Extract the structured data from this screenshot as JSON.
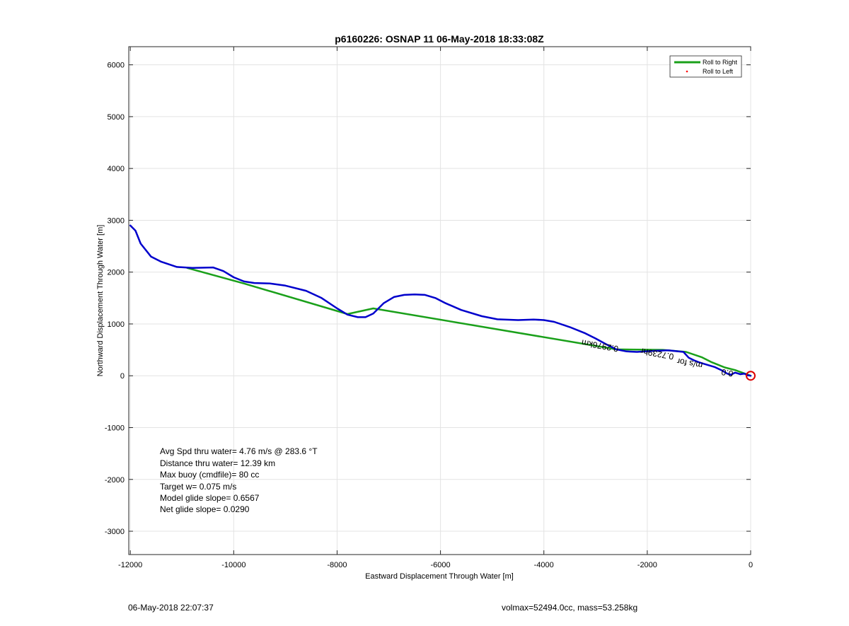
{
  "chart_data": {
    "type": "line",
    "title": "p6160226: OSNAP 11 06-May-2018 18:33:08Z",
    "xlabel": "Eastward Displacement Through Water [m]",
    "ylabel": "Northward Displacement Through Water [m]",
    "xlim": [
      -12030,
      0
    ],
    "ylim": [
      -3450,
      6350
    ],
    "xticks": [
      -12000,
      -10000,
      -8000,
      -6000,
      -4000,
      -2000,
      0
    ],
    "yticks": [
      -3000,
      -2000,
      -1000,
      0,
      1000,
      2000,
      3000,
      4000,
      5000,
      6000
    ],
    "grid": true,
    "legend_position": "top-right",
    "legend": [
      {
        "label": "Roll to Right",
        "color": "#1aa01a",
        "style": "line"
      },
      {
        "label": "Roll to Left",
        "color": "#ff0000",
        "style": "point"
      }
    ],
    "series": [
      {
        "name": "Roll to Right",
        "color": "#1aa01a",
        "x": [
          -10900,
          -9800,
          -7800,
          -7300,
          -2600,
          -1700,
          -1250,
          -950,
          -750,
          -500,
          -300,
          0
        ],
        "y": [
          2080,
          1780,
          1190,
          1300,
          510,
          500,
          460,
          360,
          260,
          160,
          110,
          0
        ]
      },
      {
        "name": "Track",
        "color": "#0000cc",
        "x": [
          -12000,
          -11900,
          -11800,
          -11600,
          -11400,
          -11100,
          -10800,
          -10400,
          -10200,
          -10000,
          -9800,
          -9600,
          -9300,
          -9000,
          -8600,
          -8300,
          -8000,
          -7800,
          -7600,
          -7450,
          -7300,
          -7100,
          -6900,
          -6700,
          -6500,
          -6300,
          -6100,
          -5900,
          -5600,
          -5200,
          -4900,
          -4500,
          -4200,
          -4000,
          -3800,
          -3500,
          -3200,
          -3000,
          -2800,
          -2600,
          -2400,
          -2200,
          -1900,
          -1600,
          -1300,
          -1200,
          -1100,
          -1000,
          -900,
          -700,
          -550,
          -450,
          -380,
          -300,
          -200,
          -120,
          -60,
          0
        ],
        "y": [
          2900,
          2800,
          2550,
          2300,
          2200,
          2100,
          2080,
          2090,
          2020,
          1900,
          1820,
          1790,
          1780,
          1740,
          1640,
          1500,
          1300,
          1180,
          1130,
          1130,
          1200,
          1400,
          1520,
          1560,
          1570,
          1560,
          1500,
          1400,
          1270,
          1150,
          1090,
          1075,
          1085,
          1075,
          1040,
          940,
          820,
          720,
          610,
          510,
          470,
          460,
          480,
          490,
          460,
          350,
          300,
          260,
          230,
          170,
          100,
          40,
          20,
          60,
          30,
          40,
          10,
          0
        ]
      }
    ],
    "annotations": {
      "stats": [
        "Avg Spd thru water=  4.76 m/s @ 283.6 °T",
        "Distance thru water= 12.39 km",
        "Max buoy (cmdfile)= 80 cc",
        "Target w= 0.075 m/s",
        "Model glide slope= 0.6567",
        "Net glide slope= 0.0290"
      ],
      "track_label": "0.2976km",
      "track_label2": "0.7239hr",
      "track_label3": "m/s for",
      "track_label4": "0.0",
      "end_marker": {
        "x": 0,
        "y": 0,
        "color": "#dd0000"
      }
    }
  },
  "footer": {
    "timestamp": "06-May-2018 22:07:37",
    "params": "volmax=52494.0cc, mass=53.258kg"
  }
}
